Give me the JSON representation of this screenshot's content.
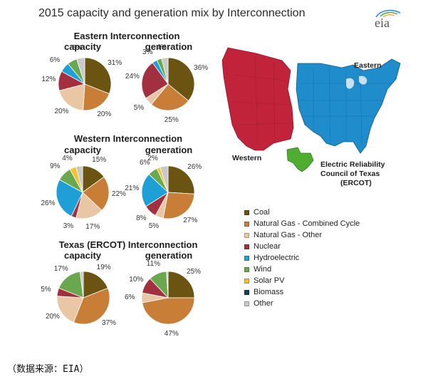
{
  "title": "2015 capacity and generation mix by Interconnection",
  "logo_text": "eia",
  "source_note": "（数据来源：EIA）",
  "colors": {
    "Coal": "#6b5411",
    "Natural Gas - Combined Cycle": "#c97e37",
    "Natural Gas - Other": "#e9c7a4",
    "Nuclear": "#a3303f",
    "Hydroelectric": "#1e9fd5",
    "Wind": "#6aa84f",
    "Solar PV": "#f1c232",
    "Biomass": "#15405a",
    "Other": "#c9c9c9",
    "western_map": "#c0233a",
    "eastern_map": "#1f8ccc",
    "ercot_map": "#4fae32"
  },
  "legend": [
    "Coal",
    "Natural Gas - Combined Cycle",
    "Natural Gas - Other",
    "Nuclear",
    "Hydroelectric",
    "Wind",
    "Solar PV",
    "Biomass",
    "Other"
  ],
  "map": {
    "western_label": "Western",
    "eastern_label": "Eastern",
    "ercot_label_1": "Electric Reliability",
    "ercot_label_2": "Council of Texas",
    "ercot_label_3": "(ERCOT)"
  },
  "chart_data": [
    {
      "type": "pie",
      "section": "Eastern Interconnection",
      "title": "capacity",
      "slices": [
        {
          "category": "Coal",
          "value": 31,
          "label": "31%"
        },
        {
          "category": "Natural Gas - Combined Cycle",
          "value": 20,
          "label": "20%"
        },
        {
          "category": "Natural Gas - Other",
          "value": 20,
          "label": "20%"
        },
        {
          "category": "Nuclear",
          "value": 12,
          "label": "12%"
        },
        {
          "category": "Hydroelectric",
          "value": 6,
          "label": "6%"
        },
        {
          "category": "Wind",
          "value": 6,
          "label": ""
        },
        {
          "category": "Other",
          "value": 5,
          "label": "5%"
        }
      ]
    },
    {
      "type": "pie",
      "section": "Eastern Interconnection",
      "title": "generation",
      "slices": [
        {
          "category": "Coal",
          "value": 36,
          "label": "36%"
        },
        {
          "category": "Natural Gas - Combined Cycle",
          "value": 25,
          "label": "25%"
        },
        {
          "category": "Natural Gas - Other",
          "value": 5,
          "label": "5%"
        },
        {
          "category": "Nuclear",
          "value": 24,
          "label": "24%"
        },
        {
          "category": "Hydroelectric",
          "value": 3,
          "label": "3%"
        },
        {
          "category": "Wind",
          "value": 3,
          "label": ""
        },
        {
          "category": "Other",
          "value": 4,
          "label": "4%"
        }
      ]
    },
    {
      "type": "pie",
      "section": "Western Interconnection",
      "title": "capacity",
      "slices": [
        {
          "category": "Coal",
          "value": 15,
          "label": "15%"
        },
        {
          "category": "Natural Gas - Combined Cycle",
          "value": 22,
          "label": "22%"
        },
        {
          "category": "Natural Gas - Other",
          "value": 17,
          "label": "17%"
        },
        {
          "category": "Nuclear",
          "value": 3,
          "label": "3%"
        },
        {
          "category": "Hydroelectric",
          "value": 26,
          "label": "26%"
        },
        {
          "category": "Wind",
          "value": 9,
          "label": "9%"
        },
        {
          "category": "Solar PV",
          "value": 4,
          "label": "4%"
        },
        {
          "category": "Other",
          "value": 4,
          "label": ""
        }
      ]
    },
    {
      "type": "pie",
      "section": "Western Interconnection",
      "title": "generation",
      "slices": [
        {
          "category": "Coal",
          "value": 26,
          "label": "26%"
        },
        {
          "category": "Natural Gas - Combined Cycle",
          "value": 27,
          "label": "27%"
        },
        {
          "category": "Natural Gas - Other",
          "value": 5,
          "label": "5%"
        },
        {
          "category": "Nuclear",
          "value": 8,
          "label": "8%"
        },
        {
          "category": "Hydroelectric",
          "value": 21,
          "label": "21%"
        },
        {
          "category": "Wind",
          "value": 6,
          "label": "6%"
        },
        {
          "category": "Solar PV",
          "value": 2,
          "label": "2%"
        },
        {
          "category": "Other",
          "value": 5,
          "label": ""
        }
      ]
    },
    {
      "type": "pie",
      "section": "Texas (ERCOT) Interconnection",
      "title": "capacity",
      "slices": [
        {
          "category": "Coal",
          "value": 19,
          "label": "19%"
        },
        {
          "category": "Natural Gas - Combined Cycle",
          "value": 37,
          "label": "37%"
        },
        {
          "category": "Natural Gas - Other",
          "value": 20,
          "label": "20%"
        },
        {
          "category": "Nuclear",
          "value": 5,
          "label": "5%"
        },
        {
          "category": "Wind",
          "value": 17,
          "label": "17%"
        },
        {
          "category": "Other",
          "value": 2,
          "label": ""
        }
      ]
    },
    {
      "type": "pie",
      "section": "Texas (ERCOT) Interconnection",
      "title": "generation",
      "slices": [
        {
          "category": "Coal",
          "value": 25,
          "label": "25%"
        },
        {
          "category": "Natural Gas - Combined Cycle",
          "value": 47,
          "label": "47%"
        },
        {
          "category": "Natural Gas - Other",
          "value": 6,
          "label": "6%"
        },
        {
          "category": "Nuclear",
          "value": 10,
          "label": "10%"
        },
        {
          "category": "Wind",
          "value": 11,
          "label": "11%"
        },
        {
          "category": "Other",
          "value": 1,
          "label": ""
        }
      ]
    }
  ]
}
